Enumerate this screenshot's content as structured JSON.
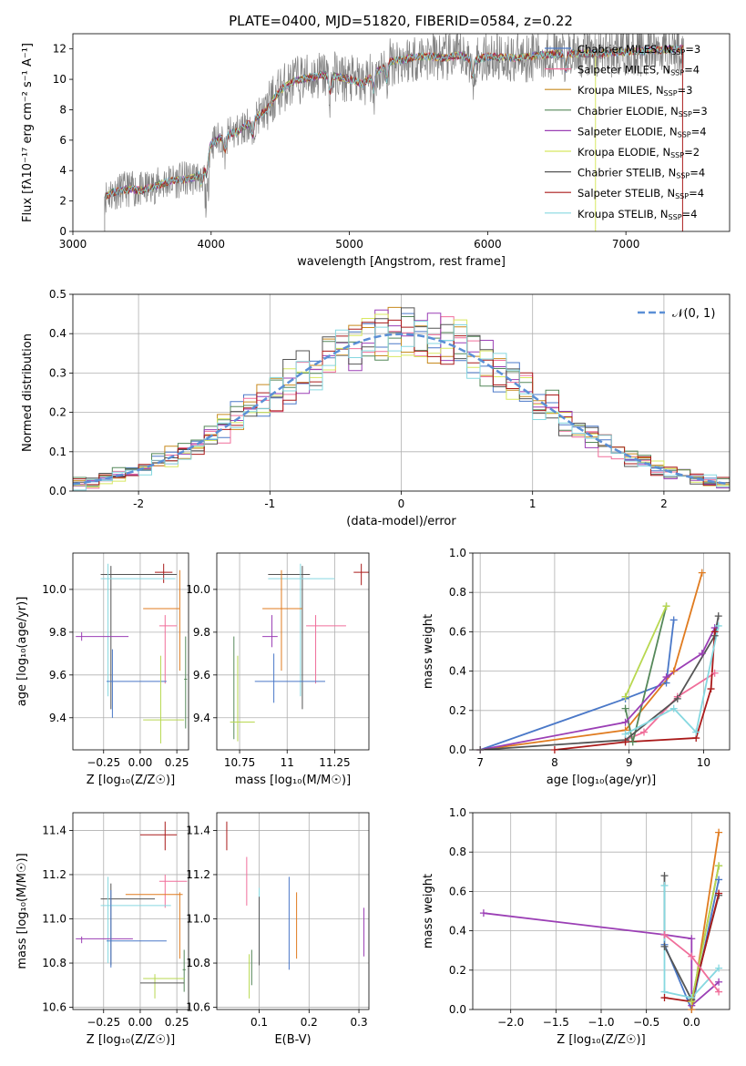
{
  "title": "PLATE=0400, MJD=51820, FIBERID=0584, z=0.22",
  "colors": {
    "Chabrier MILES": "#4a78c8",
    "Salpeter MILES": "#f06e9a",
    "Kroupa MILES": "#c78a1e",
    "Chabrier ELODIE": "#55885a",
    "Salpeter ELODIE": "#9b3fb5",
    "Kroupa ELODIE": "#d8e860",
    "Chabrier STELIB": "#555555",
    "Salpeter STELIB": "#aa1a1a",
    "Kroupa STELIB": "#86d8e0",
    "orange": "#e07b1f",
    "green": "#b8d850",
    "gauss": "#5b8fd6",
    "grid": "#b0b0b0"
  },
  "chart_data": [
    {
      "type": "line",
      "name": "spectrum",
      "xlabel": "wavelength [Angstrom, rest frame]",
      "ylabel": "Flux [fλ10⁻¹⁷ erg cm⁻² s⁻¹ A⁻¹]",
      "xlim": [
        3000,
        7750
      ],
      "ylim": [
        0,
        13
      ],
      "xticks": [
        3000,
        4000,
        5000,
        6000,
        7000
      ],
      "yticks": [
        0,
        2,
        4,
        6,
        8,
        10,
        12
      ],
      "grid": false,
      "legend_position": "top-right",
      "legend": [
        {
          "model": "Chabrier MILES",
          "label": "Chabrier MILES, N",
          "nssp": "=3"
        },
        {
          "model": "Salpeter MILES",
          "label": "Salpeter MILES, N",
          "nssp": "=4"
        },
        {
          "model": "Kroupa MILES",
          "label": "Kroupa MILES, N",
          "nssp": "=3"
        },
        {
          "model": "Chabrier ELODIE",
          "label": "Chabrier ELODIE, N",
          "nssp": "=3"
        },
        {
          "model": "Salpeter ELODIE",
          "label": "Salpeter ELODIE, N",
          "nssp": "=4"
        },
        {
          "model": "Kroupa ELODIE",
          "label": "Kroupa ELODIE, N",
          "nssp": "=2"
        },
        {
          "model": "Chabrier STELIB",
          "label": "Chabrier STELIB, N",
          "nssp": "=4"
        },
        {
          "model": "Salpeter STELIB",
          "label": "Salpeter STELIB, N",
          "nssp": "=4"
        },
        {
          "model": "Kroupa STELIB",
          "label": "Kroupa STELIB, N",
          "nssp": "=4"
        }
      ],
      "nssp_sub": "SSP",
      "model_continuum": {
        "x": [
          3230,
          3300,
          3400,
          3500,
          3600,
          3700,
          3800,
          3900,
          3950,
          4000,
          4100,
          4200,
          4300,
          4400,
          4500,
          4600,
          4700,
          4800,
          4900,
          5000,
          5100,
          5200,
          5300,
          5400,
          5500,
          5600,
          5700,
          5800,
          5900,
          6000,
          6200,
          6400,
          6600,
          6800,
          7000,
          7200,
          7400
        ],
        "y": [
          2.3,
          2.6,
          2.8,
          2.7,
          3.0,
          3.3,
          3.4,
          3.6,
          4.2,
          5.8,
          6.3,
          6.6,
          7.3,
          8.0,
          9.3,
          9.9,
          10.1,
          10.3,
          10.2,
          10.0,
          9.7,
          10.5,
          11.2,
          11.3,
          11.5,
          11.5,
          11.4,
          11.6,
          11.2,
          11.5,
          11.4,
          11.6,
          11.7,
          11.7,
          11.8,
          11.9,
          12.0
        ]
      },
      "absorption_dips": [
        3933,
        3968,
        4101,
        4300,
        4861,
        5175,
        5270,
        5890,
        6563
      ]
    },
    {
      "type": "histogram",
      "name": "residuals",
      "xlabel": "(data-model)/error",
      "ylabel": "Normed distribution",
      "xlim": [
        -2.5,
        2.5
      ],
      "ylim": [
        0,
        0.5
      ],
      "xticks": [
        -2,
        -1,
        0,
        1,
        2
      ],
      "yticks": [
        0.0,
        0.1,
        0.2,
        0.3,
        0.4,
        0.5
      ],
      "grid": true,
      "bin_width": 0.1,
      "legend": [
        {
          "label": "𝒩(0, 1)"
        }
      ],
      "legend_position": "top-right",
      "gaussian": {
        "mean": 0,
        "sigma": 1
      }
    },
    {
      "type": "errorbar",
      "name": "age-vs-Z",
      "xlabel": "Z [log₁₀(Z/Z☉)]",
      "ylabel": "age  [log₁₀(age/yr)]",
      "xlim": [
        -0.46,
        0.33
      ],
      "ylim": [
        9.25,
        10.17
      ],
      "xticks": [
        -0.25,
        0.0,
        0.25
      ],
      "xticklabels": [
        "−0.25",
        "0.00",
        "0.25"
      ],
      "yticks": [
        9.4,
        9.6,
        9.8,
        10.0
      ],
      "grid": true,
      "points": [
        {
          "c": "Salpeter STELIB",
          "x": 0.16,
          "y": 10.08,
          "xl": 0.1,
          "xh": 0.22,
          "yl": 10.03,
          "yh": 10.12
        },
        {
          "c": "Chabrier STELIB",
          "x": -0.2,
          "y": 10.07,
          "xl": -0.27,
          "xh": 0.25,
          "yl": 9.44,
          "yh": 10.11
        },
        {
          "c": "Kroupa STELIB",
          "x": -0.22,
          "y": 10.05,
          "xl": -0.27,
          "xh": 0.24,
          "yl": 9.5,
          "yh": 10.12
        },
        {
          "c": "orange",
          "x": 0.27,
          "y": 9.91,
          "xl": 0.02,
          "xh": 0.27,
          "yl": 9.62,
          "yh": 10.09
        },
        {
          "c": "Salpeter MILES",
          "x": 0.17,
          "y": 9.83,
          "xl": 0.13,
          "xh": 0.25,
          "yl": 9.56,
          "yh": 9.88
        },
        {
          "c": "Salpeter ELODIE",
          "x": -0.4,
          "y": 9.78,
          "xl": -0.44,
          "xh": -0.08,
          "yl": 9.76,
          "yh": 9.8
        },
        {
          "c": "Chabrier MILES",
          "x": -0.19,
          "y": 9.57,
          "xl": -0.23,
          "xh": 0.18,
          "yl": 9.4,
          "yh": 9.72
        },
        {
          "c": "Chabrier ELODIE",
          "x": 0.31,
          "y": 9.58,
          "xl": 0.3,
          "xh": 0.32,
          "yl": 9.35,
          "yh": 9.78
        },
        {
          "c": "green",
          "x": 0.14,
          "y": 9.39,
          "xl": 0.02,
          "xh": 0.3,
          "yl": 9.28,
          "yh": 9.69
        }
      ]
    },
    {
      "type": "errorbar",
      "name": "age-vs-mass",
      "xlabel": "mass [log₁₀(M/M☉)]",
      "ylabel": "",
      "xlim": [
        10.63,
        11.43
      ],
      "ylim": [
        9.25,
        10.17
      ],
      "xticks": [
        10.75,
        11.0,
        11.25
      ],
      "yticks": [
        9.4,
        9.6,
        9.8,
        10.0
      ],
      "grid": true,
      "points": [
        {
          "c": "Salpeter STELIB",
          "x": 11.39,
          "y": 10.08,
          "xl": 11.35,
          "xh": 11.44,
          "yl": 10.02,
          "yh": 10.12
        },
        {
          "c": "Chabrier STELIB",
          "x": 11.08,
          "y": 10.07,
          "xl": 10.9,
          "xh": 11.12,
          "yl": 9.44,
          "yh": 10.11
        },
        {
          "c": "Kroupa STELIB",
          "x": 11.07,
          "y": 10.05,
          "xl": 10.9,
          "xh": 11.25,
          "yl": 9.5,
          "yh": 10.12
        },
        {
          "c": "orange",
          "x": 10.97,
          "y": 9.91,
          "xl": 10.87,
          "xh": 11.08,
          "yl": 9.62,
          "yh": 10.09
        },
        {
          "c": "Salpeter MILES",
          "x": 11.15,
          "y": 9.83,
          "xl": 11.1,
          "xh": 11.31,
          "yl": 9.56,
          "yh": 9.88
        },
        {
          "c": "Salpeter ELODIE",
          "x": 10.92,
          "y": 9.78,
          "xl": 10.87,
          "xh": 10.95,
          "yl": 9.73,
          "yh": 9.88
        },
        {
          "c": "Chabrier MILES",
          "x": 10.93,
          "y": 9.57,
          "xl": 10.83,
          "xh": 11.2,
          "yl": 9.47,
          "yh": 9.7
        },
        {
          "c": "Chabrier ELODIE",
          "x": 10.72,
          "y": 9.38,
          "xl": 10.72,
          "xh": 10.72,
          "yl": 9.3,
          "yh": 9.78
        },
        {
          "c": "green",
          "x": 10.74,
          "y": 9.38,
          "xl": 10.7,
          "xh": 10.83,
          "yl": 9.29,
          "yh": 9.69
        }
      ]
    },
    {
      "type": "line",
      "name": "mass-weight-vs-age",
      "xlabel": "age  [log₁₀(age/yr)]",
      "ylabel": "mass weight",
      "xlim": [
        6.9,
        10.35
      ],
      "ylim": [
        0,
        1.0
      ],
      "xticks": [
        7,
        8,
        9,
        10
      ],
      "yticks": [
        0.0,
        0.2,
        0.4,
        0.6,
        0.8,
        1.0
      ],
      "grid": true,
      "series": [
        {
          "c": "Chabrier MILES",
          "x": [
            7.0,
            8.95,
            9.5,
            9.6
          ],
          "y": [
            0.0,
            0.26,
            0.34,
            0.66
          ]
        },
        {
          "c": "Salpeter MILES",
          "x": [
            8.95,
            9.2,
            9.65,
            10.15
          ],
          "y": [
            0.05,
            0.09,
            0.27,
            0.39
          ]
        },
        {
          "c": "orange",
          "x": [
            7.0,
            8.95,
            9.6,
            9.98
          ],
          "y": [
            0.0,
            0.1,
            0.4,
            0.9
          ]
        },
        {
          "c": "Chabrier ELODIE",
          "x": [
            8.95,
            9.05,
            9.5
          ],
          "y": [
            0.21,
            0.04,
            0.73
          ]
        },
        {
          "c": "Salpeter ELODIE",
          "x": [
            7.0,
            8.95,
            9.5,
            9.98,
            10.15
          ],
          "y": [
            0.0,
            0.14,
            0.37,
            0.49,
            0.62
          ]
        },
        {
          "c": "green",
          "x": [
            8.95,
            9.5
          ],
          "y": [
            0.27,
            0.73
          ]
        },
        {
          "c": "Chabrier STELIB",
          "x": [
            7.0,
            8.95,
            9.65,
            10.15,
            10.2
          ],
          "y": [
            0.0,
            0.05,
            0.26,
            0.58,
            0.68
          ]
        },
        {
          "c": "Salpeter STELIB",
          "x": [
            8.0,
            8.95,
            9.9,
            10.1,
            10.15
          ],
          "y": [
            0.0,
            0.04,
            0.06,
            0.31,
            0.6
          ]
        },
        {
          "c": "Kroupa STELIB",
          "x": [
            8.95,
            9.6,
            9.9,
            10.2
          ],
          "y": [
            0.08,
            0.21,
            0.09,
            0.63
          ]
        }
      ]
    },
    {
      "type": "errorbar",
      "name": "mass-vs-Z",
      "xlabel": "Z [log₁₀(Z/Z☉)]",
      "ylabel": "mass [log₁₀(M/M☉)]",
      "xlim": [
        -0.46,
        0.33
      ],
      "ylim": [
        10.59,
        11.48
      ],
      "xticks": [
        -0.25,
        0.0,
        0.25
      ],
      "xticklabels": [
        "−0.25",
        "0.00",
        "0.25"
      ],
      "yticks": [
        10.6,
        10.8,
        11.0,
        11.2,
        11.4
      ],
      "grid": true,
      "points": [
        {
          "c": "Salpeter STELIB",
          "x": 0.17,
          "y": 11.38,
          "xl": 0.0,
          "xh": 0.25,
          "yl": 11.31,
          "yh": 11.44
        },
        {
          "c": "Salpeter MILES",
          "x": 0.17,
          "y": 11.17,
          "xl": 0.13,
          "xh": 0.32,
          "yl": 11.05,
          "yh": 11.2
        },
        {
          "c": "orange",
          "x": 0.27,
          "y": 11.11,
          "xl": -0.1,
          "xh": 0.29,
          "yl": 10.82,
          "yh": 11.12
        },
        {
          "c": "Chabrier STELIB",
          "x": -0.2,
          "y": 11.09,
          "xl": -0.27,
          "xh": 0.1,
          "yl": 10.79,
          "yh": 11.16
        },
        {
          "c": "Kroupa STELIB",
          "x": -0.22,
          "y": 11.06,
          "xl": -0.27,
          "xh": 0.21,
          "yl": 10.8,
          "yh": 11.19
        },
        {
          "c": "Salpeter ELODIE",
          "x": -0.4,
          "y": 10.91,
          "xl": -0.44,
          "xh": -0.05,
          "yl": 10.89,
          "yh": 10.92
        },
        {
          "c": "Chabrier MILES",
          "x": -0.2,
          "y": 10.9,
          "xl": -0.23,
          "xh": 0.18,
          "yl": 10.78,
          "yh": 11.13
        },
        {
          "c": "Chabrier ELODIE",
          "x": 0.3,
          "y": 10.77,
          "xl": 0.29,
          "xh": 0.31,
          "yl": 10.67,
          "yh": 10.86
        },
        {
          "c": "green",
          "x": 0.1,
          "y": 10.73,
          "xl": 0.02,
          "xh": 0.3,
          "yl": 10.64,
          "yh": 10.75
        },
        {
          "c": "Chabrier STELIB",
          "x": 0.2,
          "y": 10.71,
          "xl": 0.0,
          "xh": 0.3,
          "yl": 10.71,
          "yh": 10.71
        }
      ]
    },
    {
      "type": "errorbar",
      "name": "mass-vs-EBV",
      "xlabel": "E(B-V)",
      "ylabel": "",
      "xlim": [
        0.015,
        0.32
      ],
      "ylim": [
        10.59,
        11.48
      ],
      "xticks": [
        0.1,
        0.2,
        0.3
      ],
      "yticks": [
        10.6,
        10.8,
        11.0,
        11.2,
        11.4
      ],
      "grid": true,
      "points": [
        {
          "c": "Salpeter STELIB",
          "x": 0.035,
          "y": 11.38,
          "yl": 11.31,
          "yh": 11.44
        },
        {
          "c": "Salpeter MILES",
          "x": 0.075,
          "y": 11.17,
          "yl": 11.06,
          "yh": 11.28
        },
        {
          "c": "Kroupa STELIB",
          "x": 0.1,
          "y": 11.0,
          "yl": 10.8,
          "yh": 11.14
        },
        {
          "c": "Chabrier STELIB",
          "x": 0.1,
          "y": 10.95,
          "yl": 10.79,
          "yh": 11.1
        },
        {
          "c": "Chabrier MILES",
          "x": 0.16,
          "y": 10.96,
          "yl": 10.77,
          "yh": 11.19
        },
        {
          "c": "orange",
          "x": 0.175,
          "y": 10.97,
          "yl": 10.82,
          "yh": 11.12
        },
        {
          "c": "Salpeter ELODIE",
          "x": 0.31,
          "y": 10.94,
          "yl": 10.83,
          "yh": 11.05
        },
        {
          "c": "Chabrier ELODIE",
          "x": 0.085,
          "y": 10.78,
          "yl": 10.7,
          "yh": 10.86
        },
        {
          "c": "green",
          "x": 0.08,
          "y": 10.74,
          "yl": 10.64,
          "yh": 10.84
        }
      ]
    },
    {
      "type": "line",
      "name": "mass-weight-vs-Z",
      "xlabel": "Z [log₁₀(Z/Z☉)]",
      "ylabel": "mass weight",
      "xlim": [
        -2.42,
        0.42
      ],
      "ylim": [
        0,
        1.0
      ],
      "xticks": [
        -2.0,
        -1.5,
        -1.0,
        -0.5,
        0.0
      ],
      "xticklabels": [
        "−2.0",
        "−1.5",
        "−1.0",
        "−0.5",
        "0.0"
      ],
      "yticks": [
        0.0,
        0.2,
        0.4,
        0.6,
        0.8,
        1.0
      ],
      "grid": true,
      "series": [
        {
          "c": "Salpeter ELODIE",
          "x": [
            -2.3,
            -0.3,
            0.0,
            0.0,
            0.3
          ],
          "y": [
            0.49,
            0.38,
            0.36,
            0.02,
            0.14
          ]
        },
        {
          "c": "Chabrier MILES",
          "x": [
            -0.3,
            0.0,
            0.3
          ],
          "y": [
            0.33,
            0.0,
            0.66
          ]
        },
        {
          "c": "orange",
          "x": [
            0.0,
            0.3
          ],
          "y": [
            0.0,
            0.9
          ]
        },
        {
          "c": "Chabrier STELIB",
          "x": [
            -0.3,
            -0.3,
            0.0,
            0.3
          ],
          "y": [
            0.68,
            0.32,
            0.05,
            0.58
          ]
        },
        {
          "c": "Kroupa STELIB",
          "x": [
            -0.3,
            -0.3,
            0.0,
            0.3
          ],
          "y": [
            0.63,
            0.09,
            0.06,
            0.21
          ]
        },
        {
          "c": "Salpeter STELIB",
          "x": [
            -0.3,
            0.0,
            0.3
          ],
          "y": [
            0.06,
            0.04,
            0.59
          ]
        },
        {
          "c": "Chabrier ELODIE",
          "x": [
            0.0,
            0.3
          ],
          "y": [
            0.04,
            0.73
          ]
        },
        {
          "c": "green",
          "x": [
            0.0,
            0.3
          ],
          "y": [
            0.04,
            0.73
          ]
        },
        {
          "c": "Salpeter MILES",
          "x": [
            -0.3,
            0.0,
            0.3
          ],
          "y": [
            0.38,
            0.27,
            0.09
          ]
        }
      ]
    }
  ]
}
